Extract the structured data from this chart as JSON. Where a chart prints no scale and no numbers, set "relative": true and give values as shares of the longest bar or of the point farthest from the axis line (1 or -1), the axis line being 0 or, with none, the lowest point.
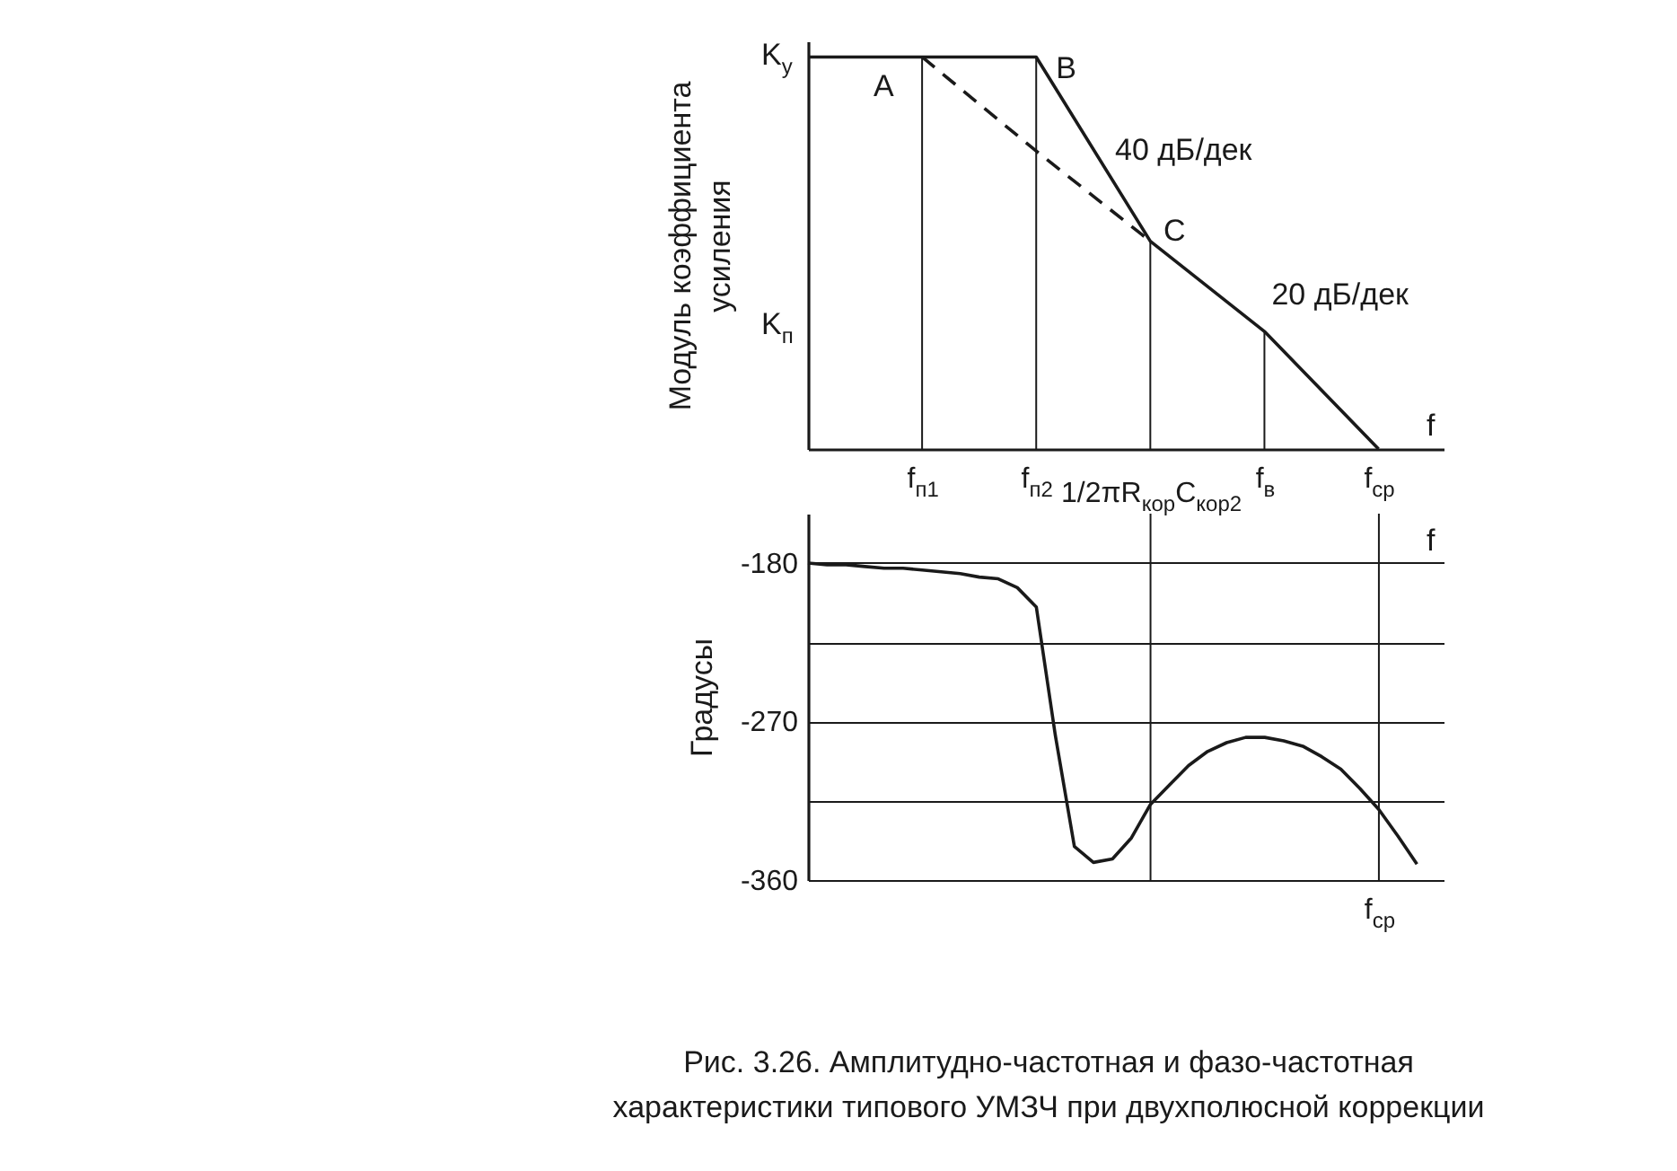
{
  "chart_data": [
    {
      "type": "line",
      "relative": true,
      "ylabel": "Модуль коэффициента усиления",
      "xlabel": "f",
      "grid": "x",
      "categories": [
        null,
        "f$_{п1}$",
        "f$_{п2}$",
        null,
        "f$_{в}$",
        "f$_{ср}$"
      ],
      "series": [
        {
          "color": "#1a1a1a",
          "values": [
            1,
            1,
            1,
            0.53,
            0.3,
            0
          ]
        },
        {
          "color": "#1a1a1a",
          "line_style": "dashed",
          "values": [
            null,
            1,
            0.76,
            0.53,
            null,
            null
          ]
        }
      ],
      "annotations": [
        "K$_{у}$",
        "K$_{п}$",
        {
          "text": "A",
          "x": "f$_{п1}$",
          "y": 1
        },
        {
          "text": "B",
          "x": "f$_{п2}$",
          "y": 1
        },
        "C",
        "40 дБ/дек",
        {
          "text": "20 дБ/дек",
          "x": "f$_{в}$",
          "y": 0.3
        }
      ]
    },
    {
      "type": "line",
      "ylabel": "Градусы",
      "xlabel": "f",
      "grid": "y",
      "categories": [
        null,
        null,
        null,
        null,
        null,
        null,
        null,
        null,
        null,
        null,
        null,
        null,
        null,
        null,
        null,
        null,
        null,
        null,
        "1/2πR$_{кор}$C$_{кор2}$",
        null,
        null,
        null,
        null,
        null,
        null,
        null,
        null,
        null,
        null,
        null,
        "f$_{ср}$",
        null,
        null
      ],
      "ylim": [
        -360,
        -152
      ],
      "yticks": [
        -180,
        {
          "value": -225,
          "label": null
        },
        -270,
        {
          "value": -315,
          "label": null
        },
        -360
      ],
      "series": [
        {
          "color": "#1a1a1a",
          "values": [
            -180,
            -181,
            -181,
            -182,
            -183,
            -183,
            -184,
            -185,
            -186,
            -188,
            -189,
            -194,
            -205,
            -278,
            -341,
            -350,
            -348,
            -336,
            -317,
            -306,
            -295,
            -287,
            -282,
            -279,
            -279,
            -281,
            -284,
            -290,
            -297,
            -308,
            -320,
            -335,
            -351
          ]
        }
      ],
      "ref_lines": [
        {
          "axis": "x",
          "value": "1/2πR$_{кор}$C$_{кор2}$"
        },
        {
          "axis": "x",
          "value": "f$_{ср}$"
        }
      ],
      "annotations": [
        "Рис. 3.26. Амплитудно-частотная и фазо-частотная характеристики типового УМЗЧ при двухполюсной коррекции"
      ]
    }
  ]
}
